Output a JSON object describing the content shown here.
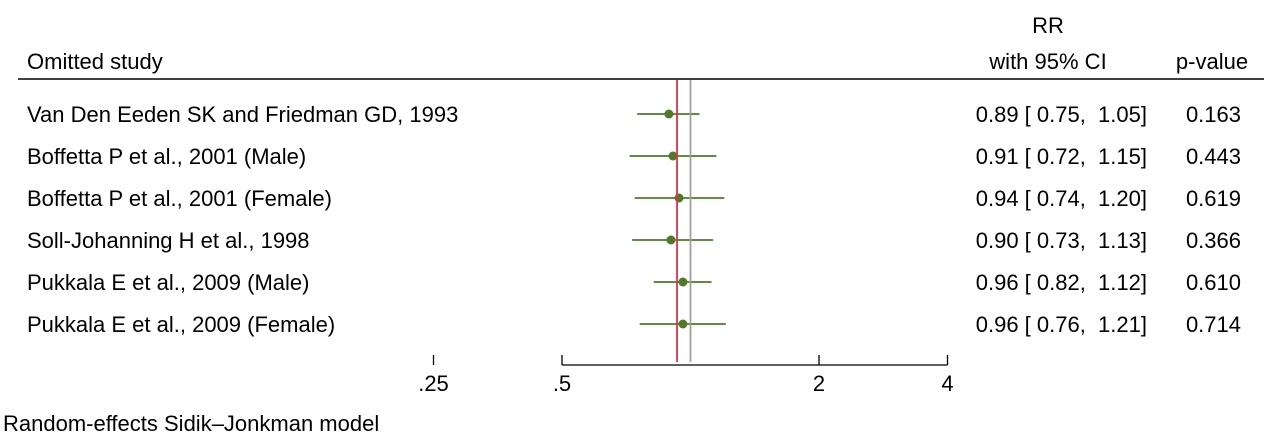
{
  "chart_data": {
    "type": "forest",
    "header": {
      "study_col": "Omitted study",
      "rr_col_line1": "RR",
      "rr_col_line2": "with 95% CI",
      "p_col": "p-value"
    },
    "studies": [
      {
        "label": "Van Den Eeden SK and Friedman GD, 1993",
        "rr": 0.89,
        "lower": 0.75,
        "upper": 1.05,
        "ci_text": "0.89 [ 0.75,  1.05]",
        "p_text": "0.163"
      },
      {
        "label": "Boffetta P et al., 2001 (Male)",
        "rr": 0.91,
        "lower": 0.72,
        "upper": 1.15,
        "ci_text": "0.91 [ 0.72,  1.15]",
        "p_text": "0.443"
      },
      {
        "label": "Boffetta P et al., 2001 (Female)",
        "rr": 0.94,
        "lower": 0.74,
        "upper": 1.2,
        "ci_text": "0.94 [ 0.74,  1.20]",
        "p_text": "0.619"
      },
      {
        "label": "Soll-Johanning H et al., 1998",
        "rr": 0.9,
        "lower": 0.73,
        "upper": 1.13,
        "ci_text": "0.90 [ 0.73,  1.13]",
        "p_text": "0.366"
      },
      {
        "label": "Pukkala E et al., 2009 (Male)",
        "rr": 0.96,
        "lower": 0.82,
        "upper": 1.12,
        "ci_text": "0.96 [ 0.82,  1.12]",
        "p_text": "0.610"
      },
      {
        "label": "Pukkala E et al., 2009 (Female)",
        "rr": 0.96,
        "lower": 0.76,
        "upper": 1.21,
        "ci_text": "0.96 [ 0.76,  1.21]",
        "p_text": "0.714"
      }
    ],
    "x_scale": "log",
    "x_ticks": [
      {
        "value": 0.25,
        "label": ".25"
      },
      {
        "value": 0.5,
        "label": ".5"
      },
      {
        "value": 2,
        "label": "2"
      },
      {
        "value": 4,
        "label": "4"
      }
    ],
    "reference_lines": [
      {
        "value": 0.93,
        "color": "#e0304a"
      },
      {
        "value": 1.0,
        "color": "#a0a0a0"
      }
    ],
    "marker_color": "#4f7a28",
    "footnote": "Random-effects Sidik–Jonkman model"
  }
}
